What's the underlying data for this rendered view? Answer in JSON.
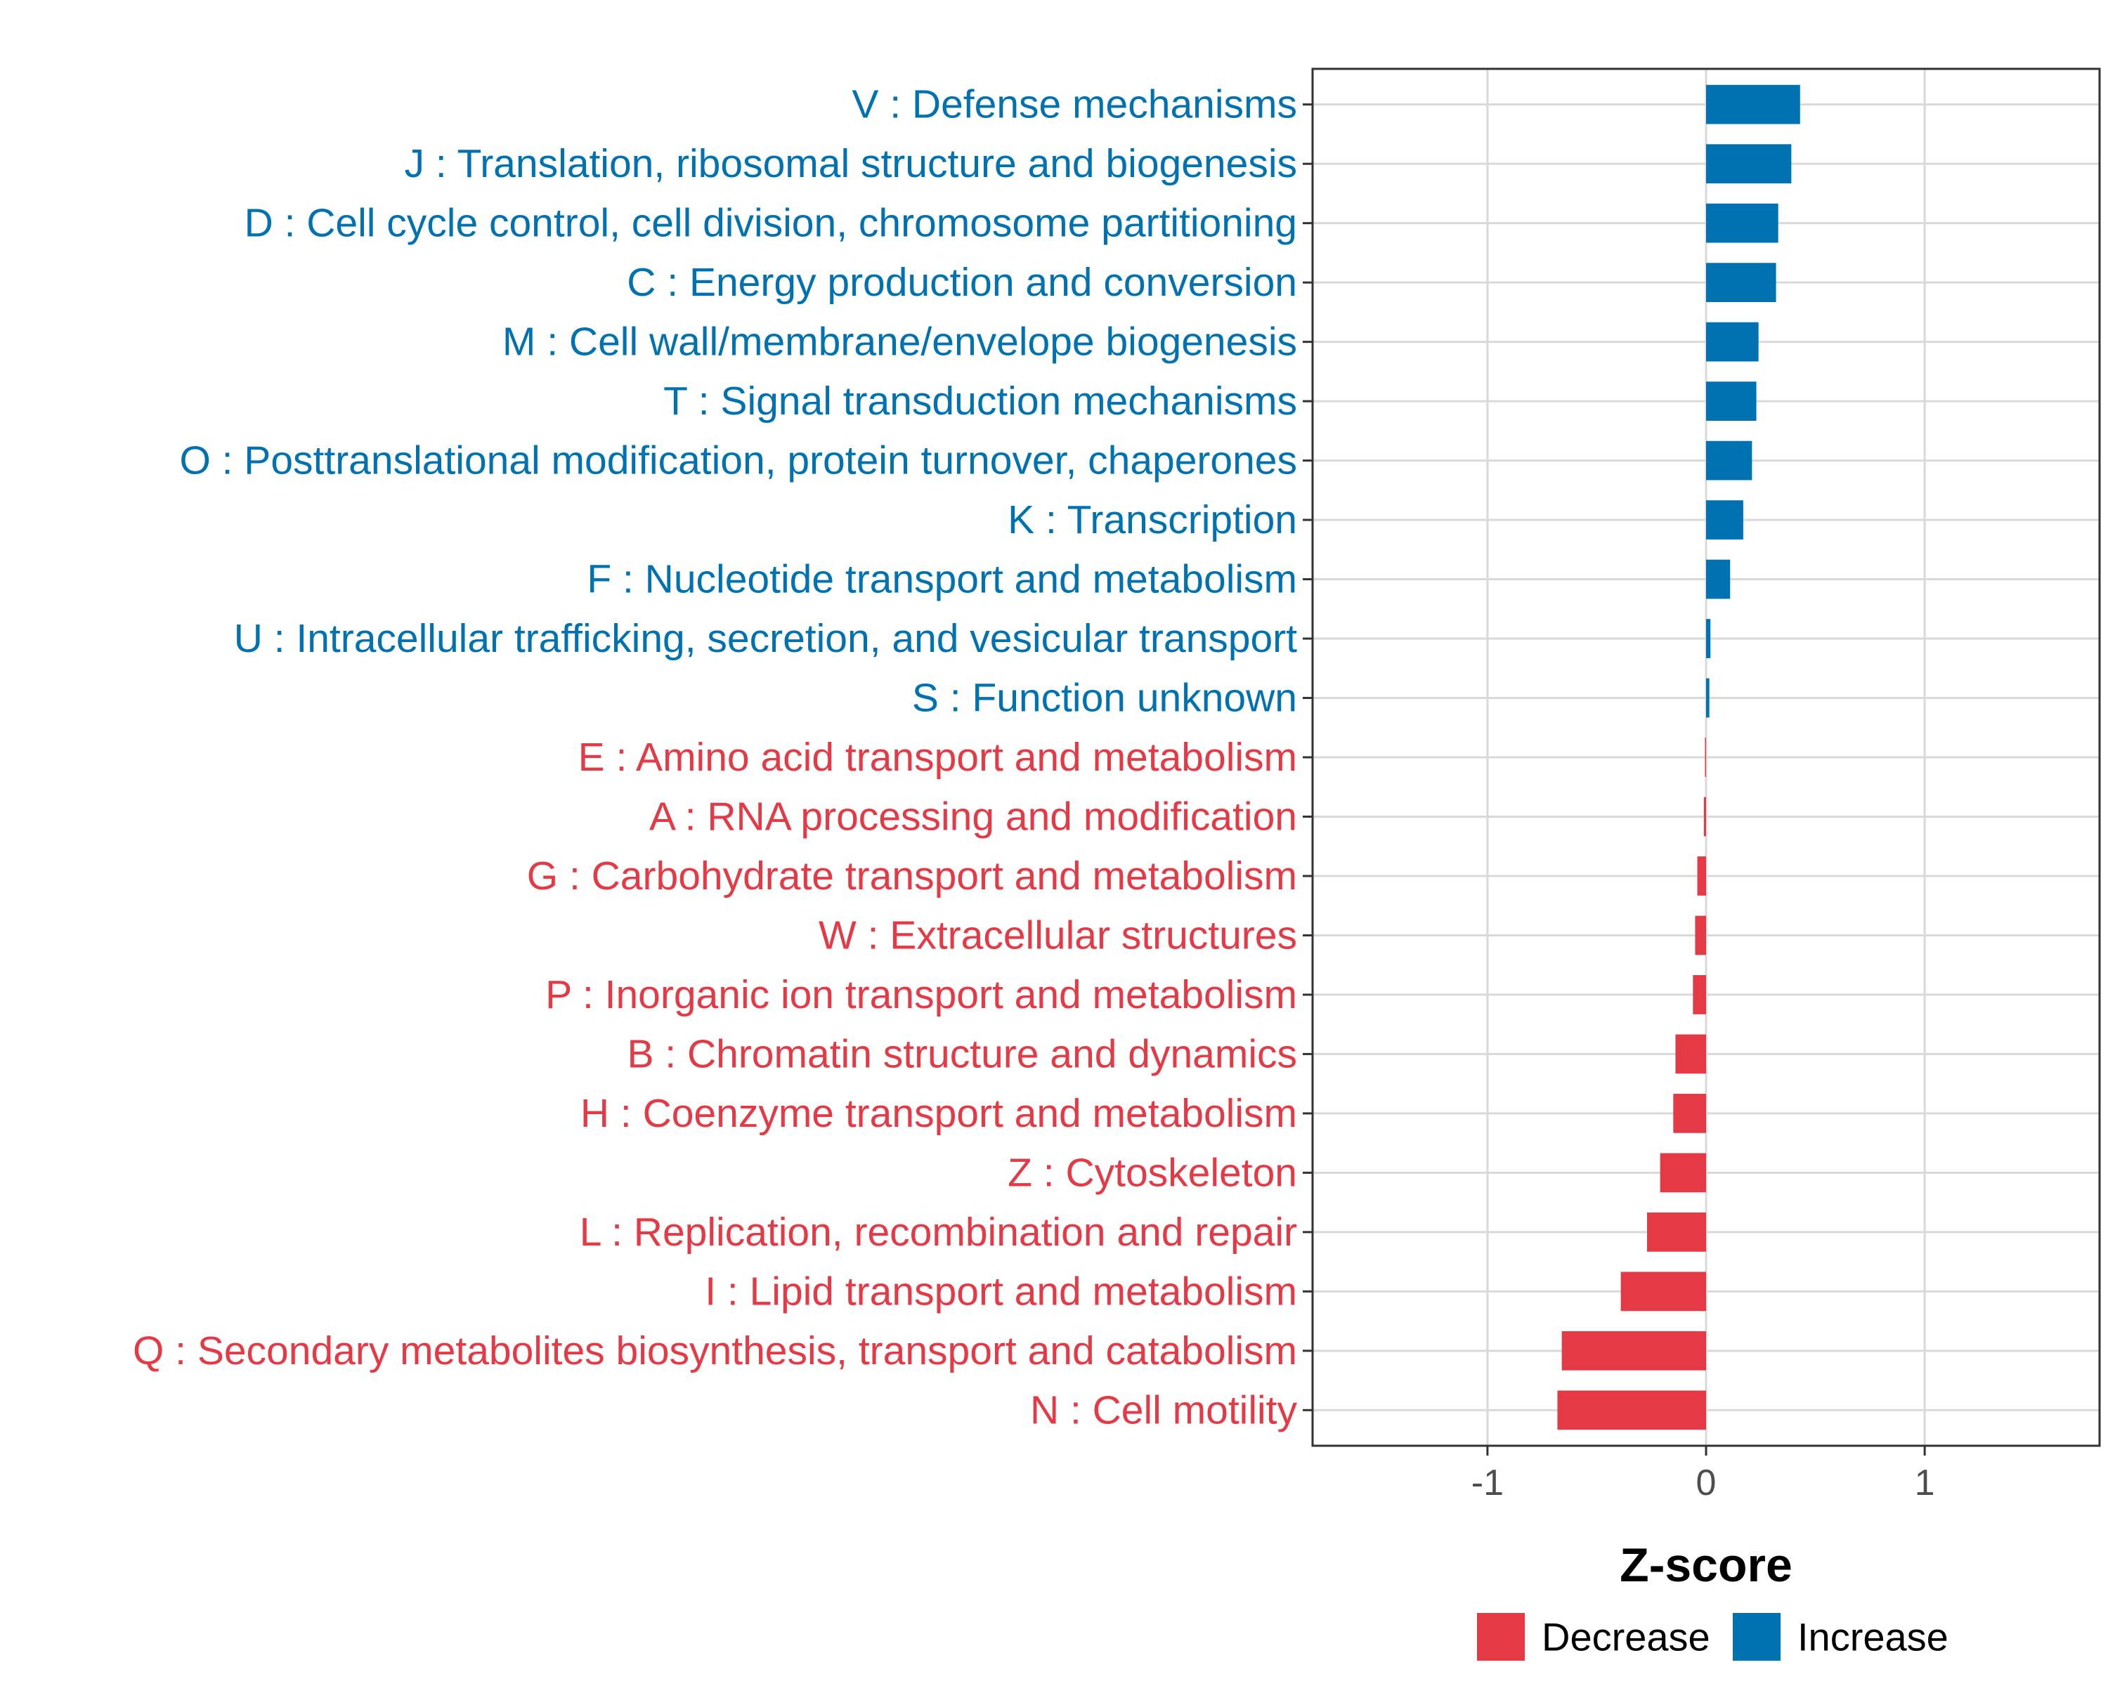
{
  "chart_data": {
    "type": "bar",
    "orientation": "horizontal",
    "xlabel": "Z-score",
    "xlim": [
      -1.8,
      1.8
    ],
    "xticks": [
      -1,
      0,
      1
    ],
    "xtick_labels": [
      "-1",
      "0",
      "1"
    ],
    "grid": true,
    "legend_position": "bottom",
    "colors": {
      "Increase": "#0072b2",
      "Decrease": "#e63946"
    },
    "legend": [
      {
        "name": "Decrease",
        "color": "#e63946"
      },
      {
        "name": "Increase",
        "color": "#0072b2"
      }
    ],
    "categories": [
      "V : Defense mechanisms",
      "J : Translation, ribosomal structure and biogenesis",
      "D : Cell cycle control, cell division, chromosome partitioning",
      "C : Energy production and conversion",
      "M : Cell wall/membrane/envelope biogenesis",
      "T : Signal transduction mechanisms",
      "O : Posttranslational modification, protein turnover, chaperones",
      "K : Transcription",
      "F : Nucleotide transport and metabolism",
      "U : Intracellular trafficking, secretion, and vesicular transport",
      "S : Function unknown",
      "E : Amino acid transport and metabolism",
      "A : RNA processing and modification",
      "G : Carbohydrate transport and metabolism",
      "W : Extracellular structures",
      "P : Inorganic ion transport and metabolism",
      "B : Chromatin structure and dynamics",
      "H : Coenzyme transport and metabolism",
      "Z : Cytoskeleton",
      "L : Replication, recombination and repair",
      "I : Lipid transport and metabolism",
      "Q : Secondary metabolites biosynthesis, transport and catabolism",
      "N : Cell motility"
    ],
    "values": [
      0.43,
      0.39,
      0.33,
      0.32,
      0.24,
      0.23,
      0.21,
      0.17,
      0.11,
      0.02,
      0.015,
      -0.005,
      -0.01,
      -0.04,
      -0.05,
      -0.06,
      -0.14,
      -0.15,
      -0.21,
      -0.27,
      -0.39,
      -0.66,
      -0.68
    ],
    "groups": [
      "Increase",
      "Increase",
      "Increase",
      "Increase",
      "Increase",
      "Increase",
      "Increase",
      "Increase",
      "Increase",
      "Increase",
      "Increase",
      "Decrease",
      "Decrease",
      "Decrease",
      "Decrease",
      "Decrease",
      "Decrease",
      "Decrease",
      "Decrease",
      "Decrease",
      "Decrease",
      "Decrease",
      "Decrease"
    ]
  }
}
